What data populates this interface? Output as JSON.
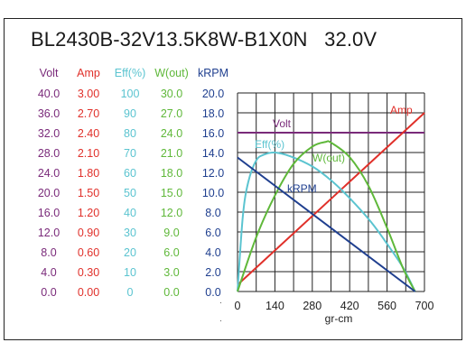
{
  "title": "BL2430B-32V13.5K8W-B1X0N   32.0V",
  "columns": [
    {
      "label": "Volt",
      "color": "#7a2a7a",
      "ticks": [
        "40.0",
        "36.0",
        "32.0",
        "28.0",
        "24.0",
        "20.0",
        "16.0",
        "12.0",
        "8.0",
        "4.0",
        "0.0"
      ]
    },
    {
      "label": "Amp",
      "color": "#e0302a",
      "ticks": [
        "3.00",
        "2.70",
        "2.40",
        "2.10",
        "1.80",
        "1.50",
        "1.20",
        "0.90",
        "0.60",
        "0.30",
        "0.00"
      ]
    },
    {
      "label": "Eff(%)",
      "color": "#5bc4d0",
      "ticks": [
        "100",
        "90",
        "80",
        "70",
        "60",
        "50",
        "40",
        "30",
        "20",
        "10",
        "0"
      ]
    },
    {
      "label": "W(out)",
      "color": "#5fb83a",
      "ticks": [
        "30.0",
        "27.0",
        "24.0",
        "21.0",
        "18.0",
        "15.0",
        "12.0",
        "9.0",
        "6.0",
        "3.0",
        "0.0"
      ]
    },
    {
      "label": "kRPM",
      "color": "#1f3f8f",
      "ticks": [
        "20.0",
        "18.0",
        "16.0",
        "14.0",
        "12.0",
        "10.0",
        "8.0",
        "6.0",
        "4.0",
        "2.0",
        "0.0"
      ]
    }
  ],
  "chart_data": {
    "type": "line",
    "title": "BL2430B-32V13.5K8W-B1X0N   32.0V",
    "xlabel": "gr-cm",
    "xlim": [
      0,
      700
    ],
    "x_ticks": [
      "0",
      "140",
      "280",
      "420",
      "560",
      "700"
    ],
    "grid": true,
    "series": [
      {
        "name": "Volt",
        "color": "#7a2a7a",
        "axis": "Volt",
        "x": [
          0,
          700
        ],
        "y": [
          32.0,
          32.0
        ]
      },
      {
        "name": "Amp",
        "color": "#e0302a",
        "axis": "Amp",
        "x": [
          0,
          700
        ],
        "y": [
          0.1,
          2.7
        ]
      },
      {
        "name": "Eff(%)",
        "color": "#5bc4d0",
        "axis": "Eff(%)",
        "x": [
          0,
          20,
          40,
          70,
          100,
          140,
          200,
          280,
          350,
          420,
          500,
          560,
          620,
          665
        ],
        "y": [
          0,
          38,
          55,
          66,
          69,
          70,
          68,
          63,
          56,
          47,
          35,
          24,
          12,
          0
        ]
      },
      {
        "name": "W(out)",
        "color": "#5fb83a",
        "axis": "W(out)",
        "x": [
          0,
          70,
          140,
          210,
          280,
          330,
          350,
          420,
          490,
          560,
          620,
          665
        ],
        "y": [
          0,
          8.2,
          14.5,
          19.3,
          21.9,
          22.6,
          22.5,
          20.3,
          16.0,
          9.6,
          3.5,
          0
        ]
      },
      {
        "name": "kRPM",
        "color": "#1f3f8f",
        "axis": "kRPM",
        "x": [
          0,
          665
        ],
        "y": [
          13.5,
          0
        ]
      }
    ]
  }
}
